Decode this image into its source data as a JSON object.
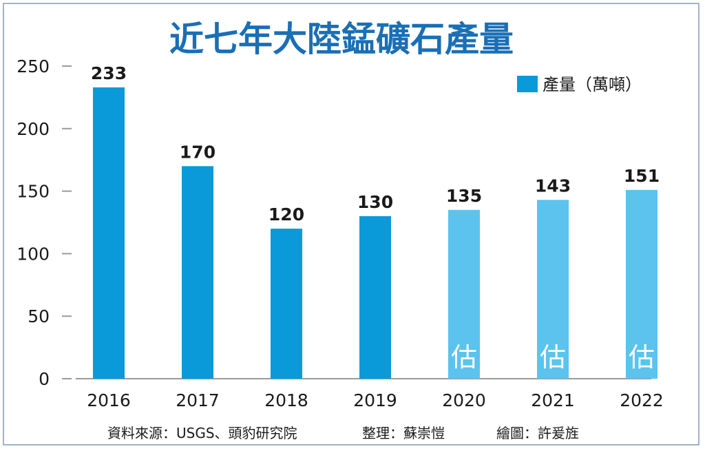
{
  "chart_data": {
    "type": "bar",
    "title": "近七年大陸錳礦石產量",
    "categories": [
      "2016",
      "2017",
      "2018",
      "2019",
      "2020",
      "2021",
      "2022"
    ],
    "values": [
      233,
      170,
      120,
      130,
      135,
      143,
      151
    ],
    "estimated": [
      false,
      false,
      false,
      false,
      true,
      true,
      true
    ],
    "estimate_label": "估",
    "series": [
      {
        "name": "產量（萬噸）",
        "values": [
          233,
          170,
          120,
          130,
          135,
          143,
          151
        ]
      }
    ],
    "ylim": [
      0,
      250
    ],
    "yticks": [
      0,
      50,
      100,
      150,
      200,
      250
    ],
    "legend_position": "top-right",
    "grid": false,
    "colors": {
      "actual": "#0a9ad9",
      "estimated": "#5bc3ee",
      "title": "#1a6fb5"
    }
  },
  "footer": {
    "source": "資料來源：USGS、頭豹研究院",
    "editor": "整理：蘇崇愷",
    "illustrator": "繪圖：許爰旌"
  }
}
